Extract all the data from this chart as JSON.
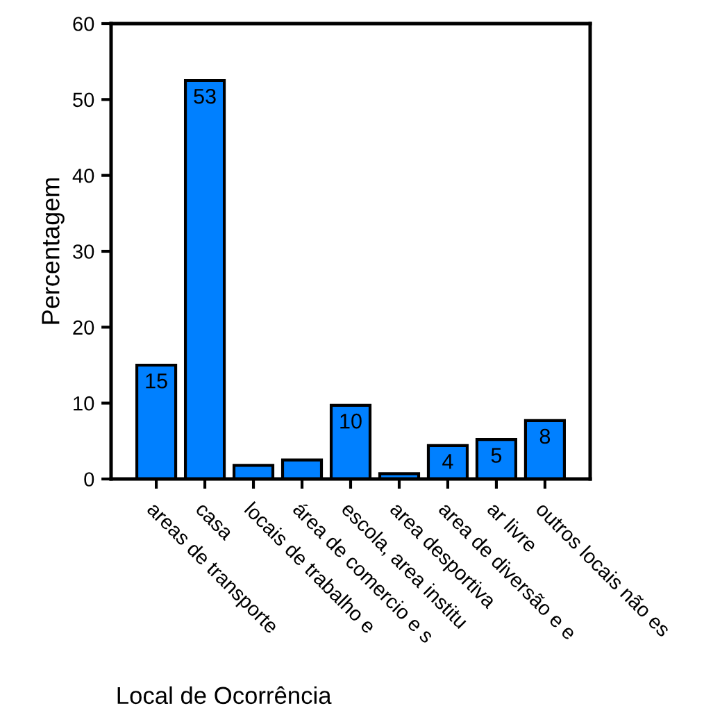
{
  "chart_data": {
    "type": "bar",
    "xlabel": "Local de Ocorrência",
    "ylabel": "Percentagem",
    "categories": [
      "areas de transporte",
      "casa",
      "locais de trabalho e",
      "área de comercio e s",
      "escola, area institu",
      "area desportiva",
      "area de diversão e e",
      "ar livre",
      "outros locais não es"
    ],
    "values": [
      15.0,
      52.5,
      1.8,
      2.5,
      9.7,
      0.7,
      4.4,
      5.2,
      7.7
    ],
    "value_labels": [
      "15",
      "53",
      null,
      null,
      "10",
      null,
      "4",
      "5",
      "8"
    ],
    "color": "#0080ff",
    "ylim": [
      0,
      60
    ],
    "yticks": [
      0,
      10,
      20,
      30,
      40,
      50,
      60
    ]
  }
}
